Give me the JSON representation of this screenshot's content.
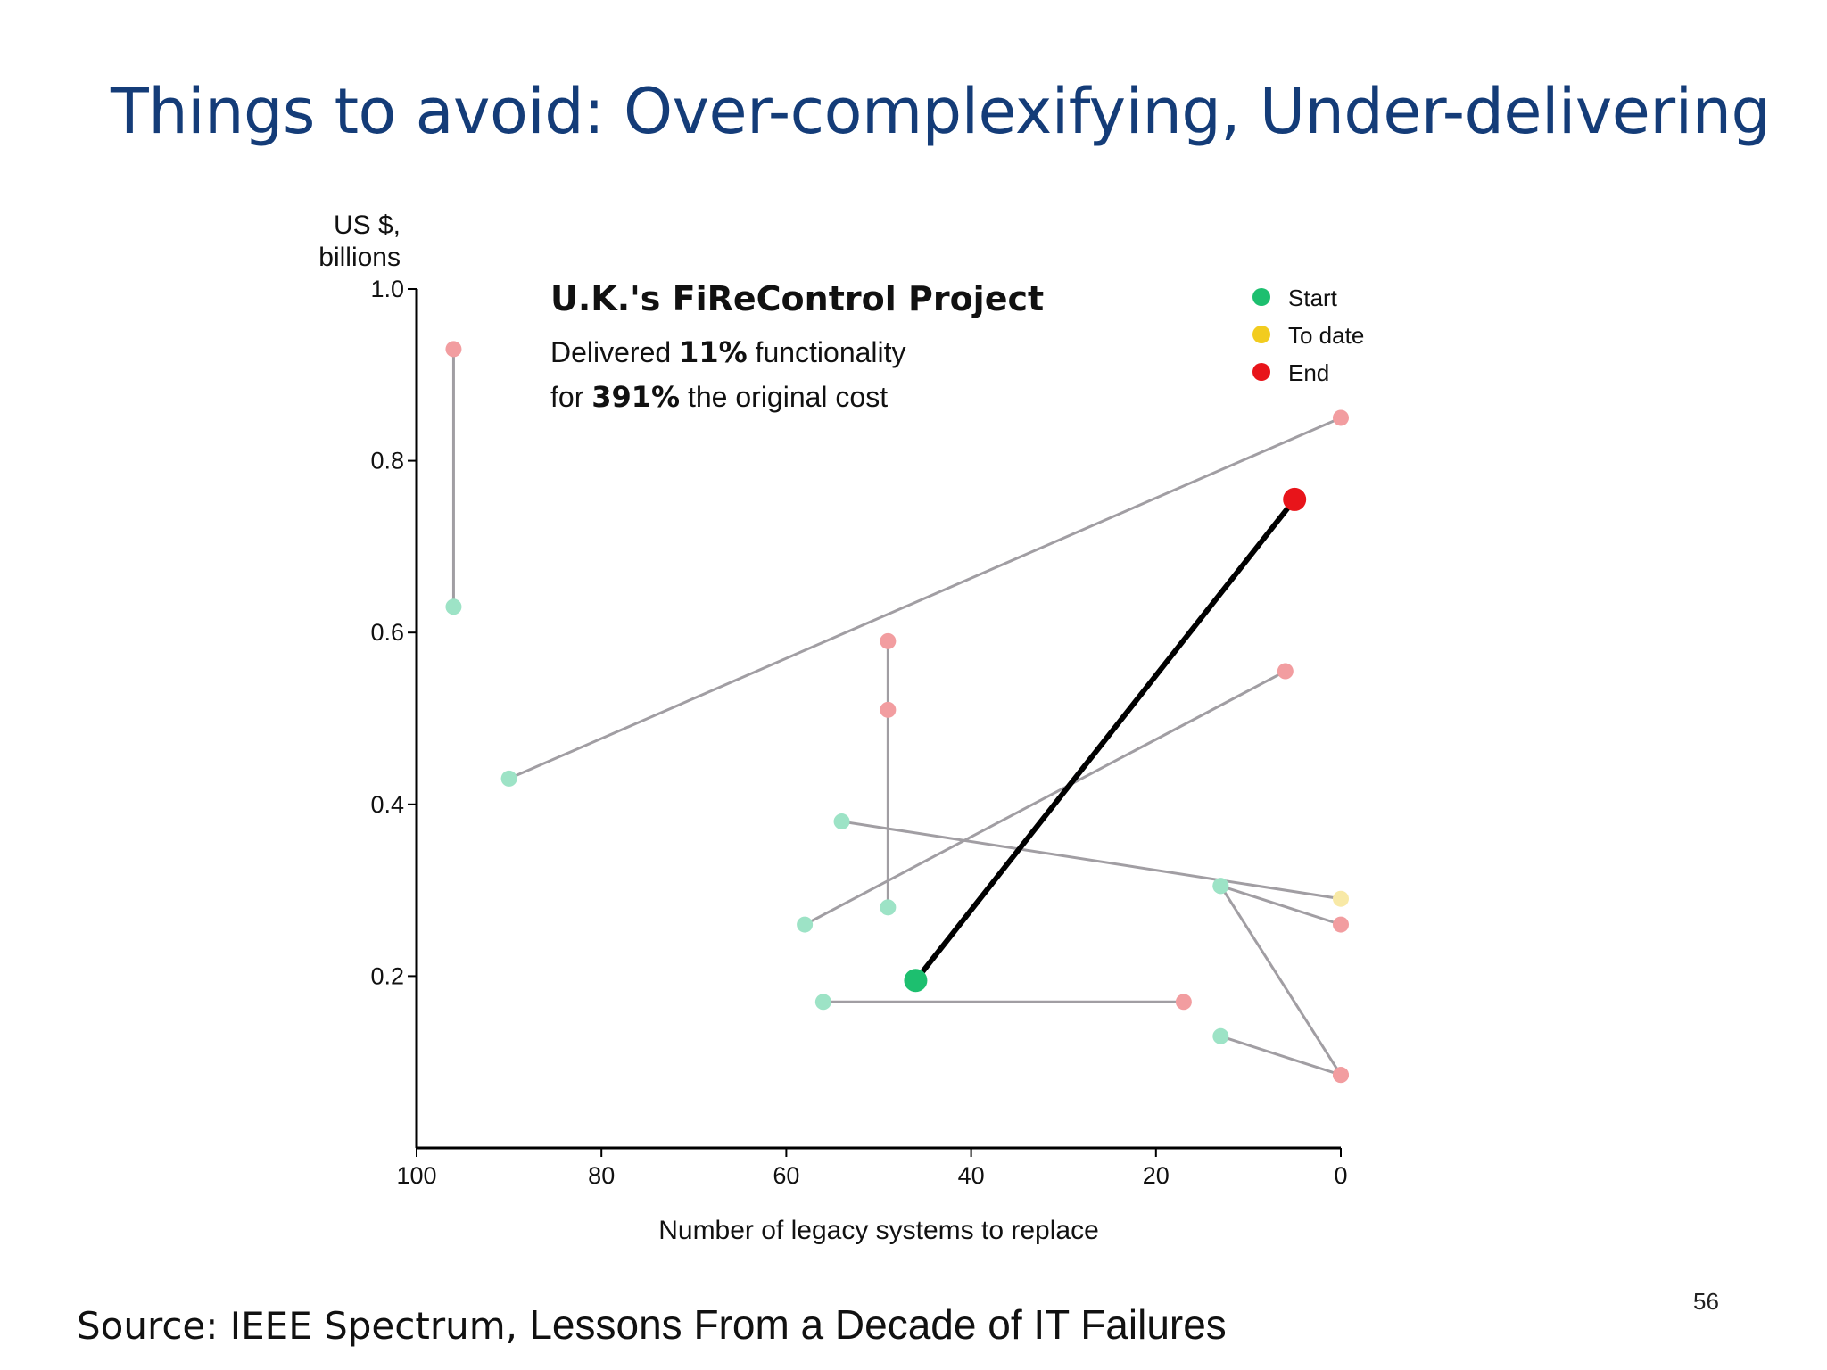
{
  "slide": {
    "title": "Things to avoid: Over-complexifying, Under-delivering",
    "source_prefix": "Source: IEEE Spectrum, ",
    "source_title": "Lessons From a Decade of IT Failures",
    "page_number": "56"
  },
  "chart_data": {
    "type": "scatter",
    "ylabel_line1": "US $,",
    "ylabel_line2": "billions",
    "xlabel": "Number of legacy systems to replace",
    "xlim": [
      100,
      0
    ],
    "ylim": [
      0,
      1.0
    ],
    "x_ticks": [
      "100",
      "80",
      "60",
      "40",
      "20",
      "0"
    ],
    "y_ticks": [
      "1.0",
      "0.8",
      "0.6",
      "0.4",
      "0.2"
    ],
    "annotation": {
      "title": "U.K.'s FiReControl Project",
      "line1_pre": "Delivered ",
      "line1_bold": "11%",
      "line1_post": " functionality",
      "line2_pre": "for ",
      "line2_bold": "391%",
      "line2_post": " the original cost"
    },
    "legend": [
      {
        "label": "Start",
        "color": "#1dbf6f"
      },
      {
        "label": "To date",
        "color": "#f2cc1f"
      },
      {
        "label": "End",
        "color": "#e8141a"
      }
    ],
    "colors": {
      "start_faded": "#9de3c6",
      "end_faded": "#f29da0",
      "todate_faded": "#f8e9a6",
      "connector": "#a19ea3",
      "highlight_line": "#000000",
      "highlight_start": "#1dbf6f",
      "highlight_end": "#e8141a"
    },
    "projects": [
      {
        "points": [
          {
            "x": 96,
            "y": 0.63,
            "stage": "start"
          },
          {
            "x": 96,
            "y": 0.93,
            "stage": "end"
          }
        ]
      },
      {
        "points": [
          {
            "x": 90,
            "y": 0.43,
            "stage": "start"
          },
          {
            "x": 0,
            "y": 0.85,
            "stage": "end"
          }
        ]
      },
      {
        "points": [
          {
            "x": 49,
            "y": 0.28,
            "stage": "start"
          },
          {
            "x": 49,
            "y": 0.51,
            "stage": "end"
          },
          {
            "x": 49,
            "y": 0.59,
            "stage": "end"
          }
        ]
      },
      {
        "points": [
          {
            "x": 58,
            "y": 0.26,
            "stage": "start"
          },
          {
            "x": 6,
            "y": 0.555,
            "stage": "end"
          }
        ]
      },
      {
        "points": [
          {
            "x": 54,
            "y": 0.38,
            "stage": "start"
          },
          {
            "x": 0,
            "y": 0.29,
            "stage": "to_date"
          }
        ]
      },
      {
        "points": [
          {
            "x": 13,
            "y": 0.305,
            "stage": "start"
          },
          {
            "x": 0,
            "y": 0.26,
            "stage": "end"
          }
        ]
      },
      {
        "points": [
          {
            "x": 13,
            "y": 0.305,
            "stage": "start"
          },
          {
            "x": 0,
            "y": 0.085,
            "stage": "end"
          }
        ]
      },
      {
        "points": [
          {
            "x": 13,
            "y": 0.13,
            "stage": "start"
          },
          {
            "x": 0,
            "y": 0.085,
            "stage": "end"
          }
        ]
      },
      {
        "points": [
          {
            "x": 56,
            "y": 0.17,
            "stage": "start"
          },
          {
            "x": 17,
            "y": 0.17,
            "stage": "end"
          }
        ]
      },
      {
        "highlight": true,
        "points": [
          {
            "x": 46,
            "y": 0.195,
            "stage": "start"
          },
          {
            "x": 5,
            "y": 0.755,
            "stage": "end"
          }
        ]
      }
    ]
  }
}
